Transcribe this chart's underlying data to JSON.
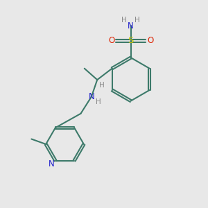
{
  "background_color": "#e8e8e8",
  "bond_color": "#3d7a6a",
  "n_color": "#2222cc",
  "s_color": "#cccc00",
  "o_color": "#dd2200",
  "h_color": "#888888",
  "bond_width": 1.5,
  "figsize": [
    3.0,
    3.0
  ],
  "dpi": 100,
  "xlim": [
    0,
    10
  ],
  "ylim": [
    0,
    10
  ]
}
